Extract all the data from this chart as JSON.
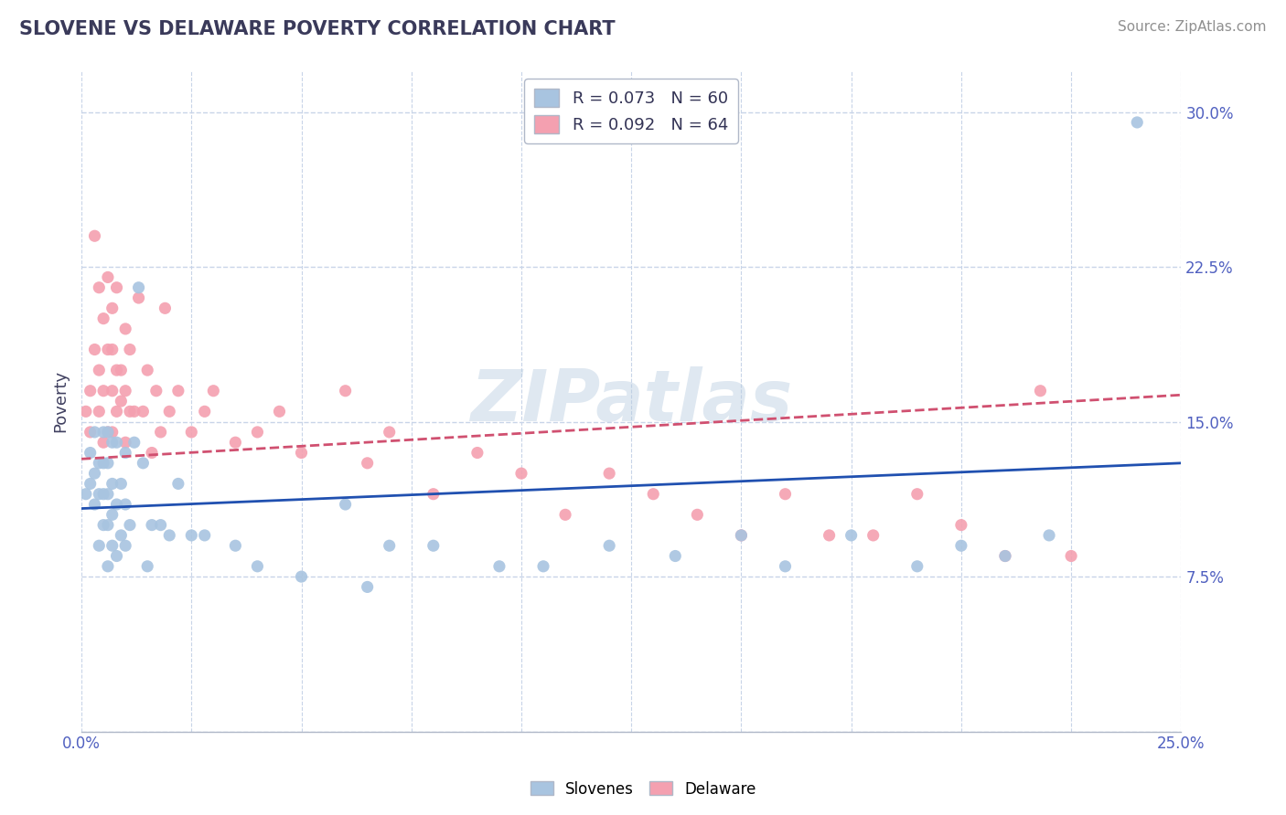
{
  "title": "SLOVENE VS DELAWARE POVERTY CORRELATION CHART",
  "source_text": "Source: ZipAtlas.com",
  "ylabel": "Poverty",
  "xlim": [
    0.0,
    0.25
  ],
  "ylim": [
    0.0,
    0.32
  ],
  "y_ticks": [
    0.0,
    0.075,
    0.15,
    0.225,
    0.3
  ],
  "y_tick_labels": [
    "",
    "7.5%",
    "15.0%",
    "22.5%",
    "30.0%"
  ],
  "watermark": "ZIPatlas",
  "legend_R1": "R = 0.073",
  "legend_N1": "N = 60",
  "legend_R2": "R = 0.092",
  "legend_N2": "N = 64",
  "slovenes_color": "#a8c4e0",
  "delaware_color": "#f4a0b0",
  "slovenes_line_color": "#2050b0",
  "delaware_line_color": "#d05070",
  "background_color": "#ffffff",
  "grid_color": "#c8d4e8",
  "title_color": "#3a3a5a",
  "tick_color": "#5060c0",
  "slovenes_x": [
    0.001,
    0.002,
    0.002,
    0.003,
    0.003,
    0.003,
    0.004,
    0.004,
    0.004,
    0.005,
    0.005,
    0.005,
    0.005,
    0.006,
    0.006,
    0.006,
    0.006,
    0.006,
    0.007,
    0.007,
    0.007,
    0.007,
    0.008,
    0.008,
    0.008,
    0.009,
    0.009,
    0.01,
    0.01,
    0.01,
    0.011,
    0.012,
    0.013,
    0.014,
    0.015,
    0.016,
    0.018,
    0.02,
    0.022,
    0.025,
    0.028,
    0.035,
    0.04,
    0.05,
    0.06,
    0.065,
    0.07,
    0.08,
    0.095,
    0.105,
    0.12,
    0.135,
    0.15,
    0.16,
    0.175,
    0.19,
    0.2,
    0.21,
    0.22,
    0.24
  ],
  "slovenes_y": [
    0.115,
    0.12,
    0.135,
    0.11,
    0.125,
    0.145,
    0.09,
    0.115,
    0.13,
    0.1,
    0.115,
    0.13,
    0.145,
    0.08,
    0.1,
    0.115,
    0.13,
    0.145,
    0.09,
    0.105,
    0.12,
    0.14,
    0.085,
    0.11,
    0.14,
    0.095,
    0.12,
    0.09,
    0.11,
    0.135,
    0.1,
    0.14,
    0.215,
    0.13,
    0.08,
    0.1,
    0.1,
    0.095,
    0.12,
    0.095,
    0.095,
    0.09,
    0.08,
    0.075,
    0.11,
    0.07,
    0.09,
    0.09,
    0.08,
    0.08,
    0.09,
    0.085,
    0.095,
    0.08,
    0.095,
    0.08,
    0.09,
    0.085,
    0.095,
    0.295
  ],
  "delaware_x": [
    0.001,
    0.002,
    0.002,
    0.003,
    0.003,
    0.004,
    0.004,
    0.004,
    0.005,
    0.005,
    0.005,
    0.006,
    0.006,
    0.006,
    0.007,
    0.007,
    0.007,
    0.007,
    0.008,
    0.008,
    0.008,
    0.009,
    0.009,
    0.01,
    0.01,
    0.01,
    0.011,
    0.011,
    0.012,
    0.013,
    0.014,
    0.015,
    0.016,
    0.017,
    0.018,
    0.019,
    0.02,
    0.022,
    0.025,
    0.028,
    0.03,
    0.035,
    0.04,
    0.045,
    0.05,
    0.06,
    0.065,
    0.07,
    0.08,
    0.09,
    0.1,
    0.11,
    0.12,
    0.13,
    0.14,
    0.15,
    0.16,
    0.17,
    0.18,
    0.19,
    0.2,
    0.21,
    0.218,
    0.225
  ],
  "delaware_y": [
    0.155,
    0.165,
    0.145,
    0.24,
    0.185,
    0.155,
    0.215,
    0.175,
    0.14,
    0.2,
    0.165,
    0.145,
    0.185,
    0.22,
    0.185,
    0.145,
    0.165,
    0.205,
    0.155,
    0.175,
    0.215,
    0.16,
    0.175,
    0.14,
    0.165,
    0.195,
    0.155,
    0.185,
    0.155,
    0.21,
    0.155,
    0.175,
    0.135,
    0.165,
    0.145,
    0.205,
    0.155,
    0.165,
    0.145,
    0.155,
    0.165,
    0.14,
    0.145,
    0.155,
    0.135,
    0.165,
    0.13,
    0.145,
    0.115,
    0.135,
    0.125,
    0.105,
    0.125,
    0.115,
    0.105,
    0.095,
    0.115,
    0.095,
    0.095,
    0.115,
    0.1,
    0.085,
    0.165,
    0.085
  ]
}
